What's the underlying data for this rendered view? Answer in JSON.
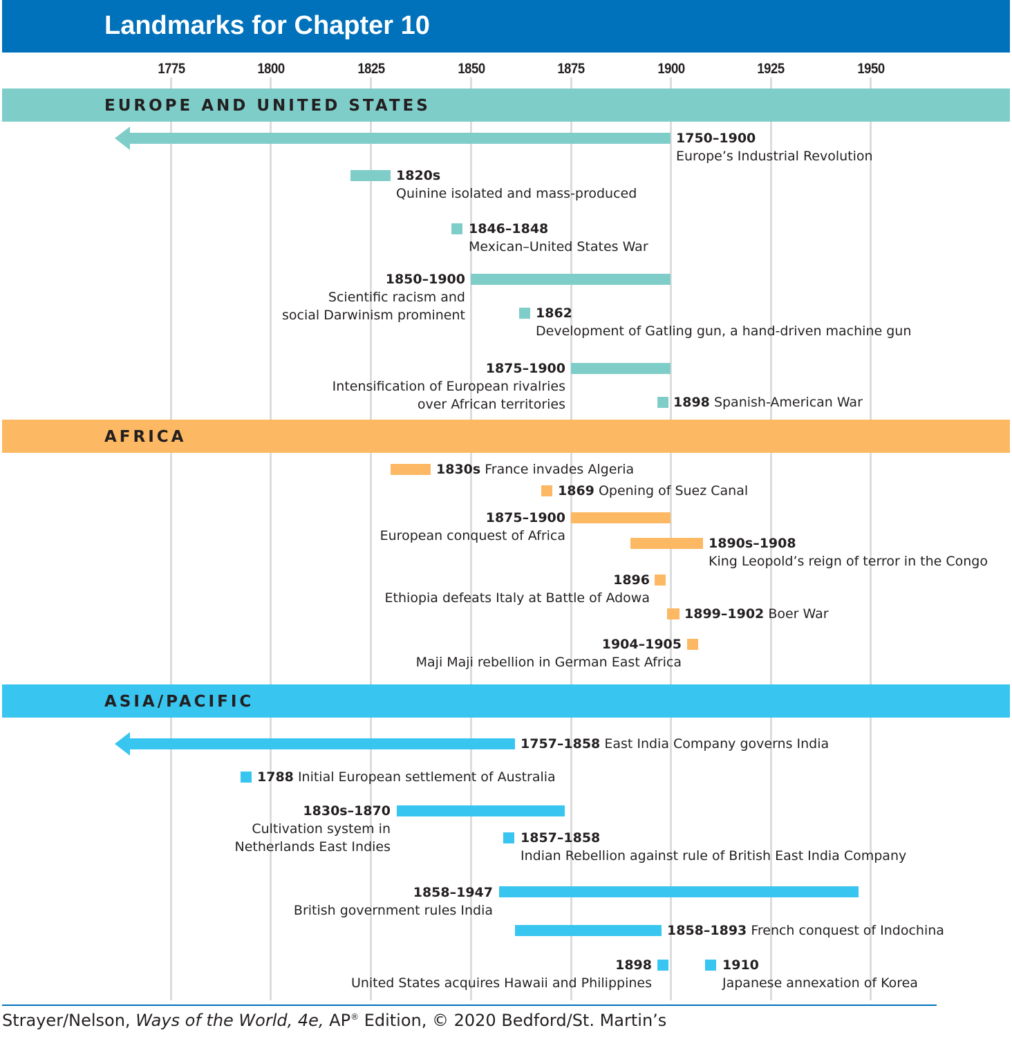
{
  "title": "Landmarks for Chapter 10",
  "axis": {
    "years": [
      "1775",
      "1800",
      "1825",
      "1850",
      "1875",
      "1900",
      "1925",
      "1950"
    ]
  },
  "colors": {
    "title_bar": "#0071bb",
    "europe": "#7fcdc8",
    "africa": "#fdb863",
    "asia": "#38c5f0",
    "gridline": "#dcdcdc"
  },
  "sections": {
    "europe": {
      "title": "EUROPE AND UNITED STATES",
      "events": [
        {
          "date": "1750–1900",
          "desc": "Europe’s Industrial Revolution",
          "start": 1750,
          "end": 1900,
          "arrow": true
        },
        {
          "date": "1820s",
          "desc": "Quinine isolated and mass-produced",
          "start": 1820,
          "end": 1830
        },
        {
          "date": "1846–1848",
          "desc": "Mexican–United States War",
          "start": 1846,
          "end": 1848
        },
        {
          "date": "1850–1900",
          "desc_line1": "Scientific racism and",
          "desc_line2": "social Darwinism prominent",
          "start": 1850,
          "end": 1900
        },
        {
          "date": "1862",
          "desc": "Development of Gatling gun, a hand-driven machine gun",
          "start": 1862,
          "end": 1862
        },
        {
          "date": "1875–1900",
          "desc_line1": "Intensification of European rivalries",
          "desc_line2": "over African territories",
          "start": 1875,
          "end": 1900
        },
        {
          "date": "1898",
          "desc": "Spanish-American War",
          "start": 1898,
          "end": 1898
        }
      ]
    },
    "africa": {
      "title": "AFRICA",
      "events": [
        {
          "date": "1830s",
          "desc": "France invades Algeria",
          "start": 1830,
          "end": 1840
        },
        {
          "date": "1869",
          "desc": "Opening of Suez Canal",
          "start": 1869,
          "end": 1869
        },
        {
          "date": "1875–1900",
          "desc": "European conquest of Africa",
          "start": 1875,
          "end": 1900
        },
        {
          "date": "1890s–1908",
          "desc": "King Leopold’s reign of terror in the Congo",
          "start": 1890,
          "end": 1908
        },
        {
          "date": "1896",
          "desc": "Ethiopia defeats Italy at Battle of Adowa",
          "start": 1896,
          "end": 1896
        },
        {
          "date": "1899–1902",
          "desc": "Boer War",
          "start": 1899,
          "end": 1902
        },
        {
          "date": "1904–1905",
          "desc": "Maji Maji rebellion in German East Africa",
          "start": 1904,
          "end": 1905
        }
      ]
    },
    "asia": {
      "title": "ASIA/PACIFIC",
      "events": [
        {
          "date": "1757–1858",
          "desc": "East India Company governs India",
          "start": 1757,
          "end": 1858,
          "arrow": true
        },
        {
          "date": "1788",
          "desc": "Initial European settlement of Australia",
          "start": 1788,
          "end": 1788
        },
        {
          "date": "1830s–1870",
          "desc_line1": "Cultivation system in",
          "desc_line2": "Netherlands East Indies",
          "start": 1830,
          "end": 1870
        },
        {
          "date": "1857–1858",
          "desc": "Indian Rebellion against rule of British East India Company",
          "start": 1857,
          "end": 1858
        },
        {
          "date": "1858–1947",
          "desc": "British government rules India",
          "start": 1858,
          "end": 1947
        },
        {
          "date": "1858–1893",
          "desc": "French conquest of Indochina",
          "start": 1858,
          "end": 1893
        },
        {
          "date": "1898",
          "desc": "United States acquires Hawaii and Philippines",
          "start": 1898,
          "end": 1898
        },
        {
          "date": "1910",
          "desc": "Japanese annexation of Korea",
          "start": 1910,
          "end": 1910
        }
      ]
    }
  },
  "footer": {
    "authors": "Strayer/Nelson, ",
    "book": "Ways of the World, 4e,",
    "edition_pre": " AP",
    "reg": "®",
    "edition_post": " Edition, © 2020 Bedford/St. Martin’s"
  }
}
